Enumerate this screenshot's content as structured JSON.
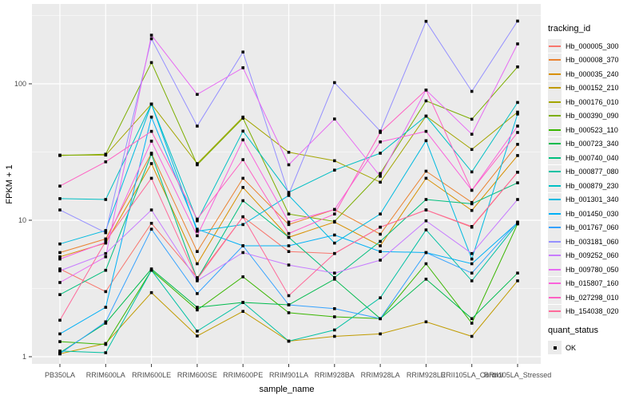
{
  "chart_data": {
    "type": "line",
    "title": "",
    "xlabel": "sample_name",
    "ylabel": "FPKM + 1",
    "yscale": "log10",
    "ylim": [
      0.88,
      380
    ],
    "yticks_major": [
      1,
      10,
      100
    ],
    "ytick_labels": [
      "1",
      "10",
      "100"
    ],
    "yticks_minor": [
      3.162,
      31.62,
      316.2
    ],
    "grid": "on",
    "legend_position": "right",
    "panel_color": "#EBEBEB",
    "grid_color": "#FFFFFF",
    "point_color": "#000000",
    "tick_label_color": "#4D4D4D",
    "categories": [
      "PB350LA",
      "RRIM600LA",
      "RRIM600LE",
      "RRIM600SE",
      "RRIM600PE",
      "RRIM901LA",
      "RRIM928BA",
      "RRIM928LA",
      "RRIM928LE",
      "RRII105LA_Control",
      "RRII105LA_Stressed"
    ],
    "legend_title": "tracking_id",
    "quant_legend": {
      "title": "quant_status",
      "item": "OK"
    },
    "series": [
      {
        "name": "Hb_000005_300",
        "color": "#F8766D",
        "values": [
          4.4,
          3.0,
          9.5,
          3.8,
          10.6,
          5.9,
          5.7,
          8.9,
          11.9,
          8.9,
          22.5
        ]
      },
      {
        "name": "Hb_000008_370",
        "color": "#EA8331",
        "values": [
          5.8,
          7.3,
          31,
          5.9,
          20.3,
          9.3,
          12.0,
          7.9,
          22.9,
          13.5,
          36
        ]
      },
      {
        "name": "Hb_000035_240",
        "color": "#D89000",
        "values": [
          5.4,
          6.8,
          26,
          4.8,
          17.4,
          7.5,
          9.7,
          6.5,
          20.3,
          11.8,
          29.8
        ]
      },
      {
        "name": "Hb_000152_210",
        "color": "#C09B00",
        "values": [
          1.05,
          1.25,
          2.95,
          1.42,
          2.15,
          1.3,
          1.41,
          1.47,
          1.8,
          1.41,
          3.6
        ]
      },
      {
        "name": "Hb_000176_010",
        "color": "#A3A500",
        "values": [
          30,
          30,
          71,
          26,
          57,
          31.5,
          27.3,
          19,
          58,
          33,
          62
        ]
      },
      {
        "name": "Hb_000390_090",
        "color": "#7CAE00",
        "values": [
          29.8,
          30.5,
          143,
          25.5,
          56,
          11.1,
          9.8,
          22,
          75,
          55,
          133
        ]
      },
      {
        "name": "Hb_000523_110",
        "color": "#39B600",
        "values": [
          1.29,
          1.23,
          4.3,
          2.2,
          3.85,
          2.1,
          1.96,
          1.9,
          4.8,
          1.76,
          9.4
        ]
      },
      {
        "name": "Hb_000723_340",
        "color": "#00BB4E",
        "values": [
          1.07,
          1.76,
          4.4,
          2.3,
          2.5,
          2.4,
          3.7,
          1.9,
          3.7,
          1.9,
          4.1
        ]
      },
      {
        "name": "Hb_000740_040",
        "color": "#00BF7D",
        "values": [
          2.85,
          4.3,
          30.5,
          3.7,
          13.9,
          7.5,
          3.8,
          7.0,
          14.2,
          13.2,
          18.8
        ]
      },
      {
        "name": "Hb_000877_080",
        "color": "#00C1A3",
        "values": [
          1.1,
          1.07,
          4.3,
          1.54,
          2.5,
          1.3,
          1.57,
          2.7,
          8.5,
          3.6,
          9.5
        ]
      },
      {
        "name": "Hb_000879_230",
        "color": "#00BFC4",
        "values": [
          14.4,
          14.2,
          71,
          9.9,
          45,
          16,
          23.3,
          31,
          58,
          22.6,
          73
        ]
      },
      {
        "name": "Hb_001301_340",
        "color": "#00BAE0",
        "values": [
          6.7,
          8.4,
          71,
          8.3,
          9.3,
          15.2,
          6.8,
          11.1,
          38.3,
          5.2,
          60
        ]
      },
      {
        "name": "Hb_001450_030",
        "color": "#00B0F6",
        "values": [
          1.47,
          2.3,
          57,
          8.6,
          6.5,
          6.5,
          7.8,
          5.9,
          5.8,
          4.8,
          9.6
        ]
      },
      {
        "name": "Hb_001767_060",
        "color": "#35A2FF",
        "values": [
          1.05,
          1.8,
          8.6,
          2.9,
          6.5,
          2.4,
          2.25,
          1.9,
          5.8,
          4.1,
          9.7
        ]
      },
      {
        "name": "Hb_003181_060",
        "color": "#9590FF",
        "values": [
          11.9,
          8.1,
          214,
          49,
          171,
          15.5,
          102,
          45,
          287,
          88,
          288
        ]
      },
      {
        "name": "Hb_009252_060",
        "color": "#C77CFF",
        "values": [
          4.26,
          5.7,
          11.9,
          3.6,
          5.8,
          4.7,
          4.1,
          5.1,
          9.9,
          5.7,
          14.2
        ]
      },
      {
        "name": "Hb_009780_050",
        "color": "#E76BF3",
        "values": [
          3.5,
          5.4,
          227,
          83.6,
          131,
          25.5,
          55.2,
          21,
          90,
          42.7,
          196
        ]
      },
      {
        "name": "Hb_015807_160",
        "color": "#FA62DB",
        "values": [
          5.2,
          6.9,
          38,
          7.7,
          38.8,
          9.7,
          12.0,
          37.5,
          44.8,
          16.6,
          49
        ]
      },
      {
        "name": "Hb_027298_010",
        "color": "#FF61C3",
        "values": [
          17.8,
          26.8,
          44.8,
          10.2,
          27.8,
          8.0,
          11.1,
          44,
          90,
          16.6,
          44
        ]
      },
      {
        "name": "Hb_154038_020",
        "color": "#FF6A9A",
        "values": [
          1.85,
          7.0,
          20.3,
          3.7,
          10.6,
          2.8,
          5.7,
          8.9,
          11.9,
          9.0,
          22.5
        ]
      }
    ]
  }
}
